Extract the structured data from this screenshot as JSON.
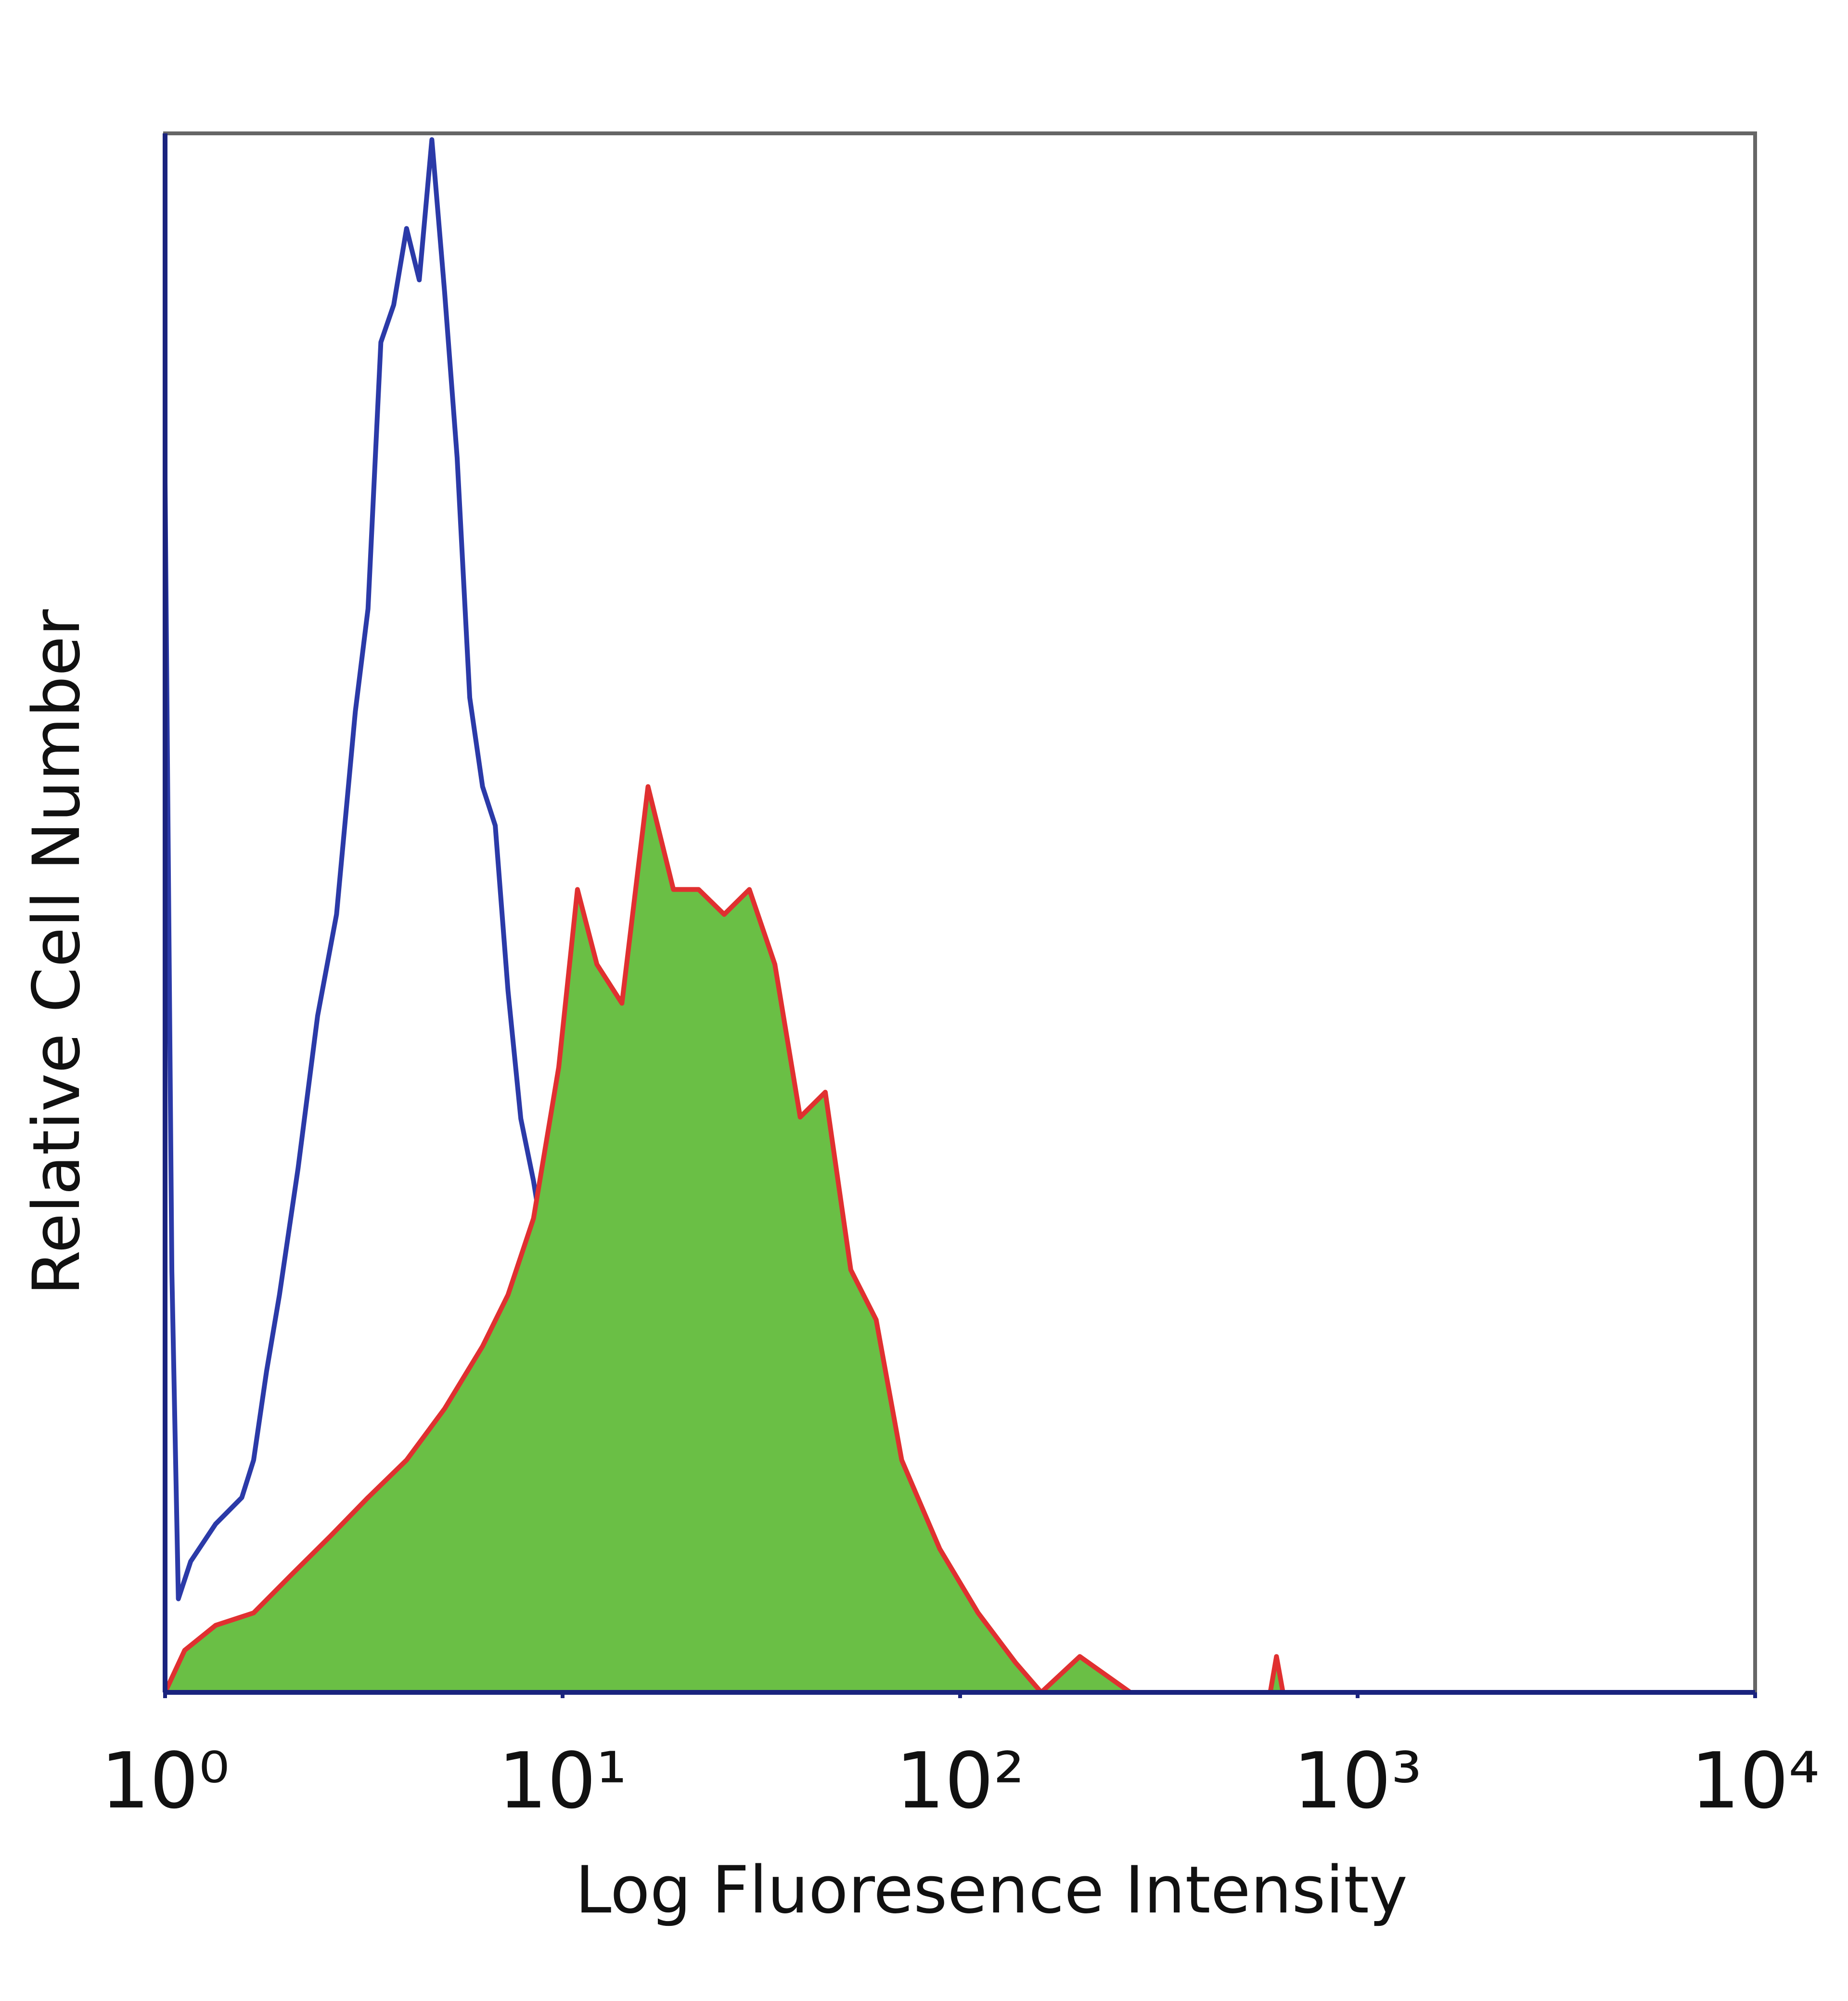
{
  "chart_data": {
    "type": "histogram-overlay",
    "xlabel": "Log Fluoresence Intensity",
    "ylabel": "Relative Cell Number",
    "xscale": "log",
    "xlim": [
      1,
      10000
    ],
    "ylim": [
      0,
      100
    ],
    "xticks": [
      {
        "value": 1,
        "label": "10⁰"
      },
      {
        "value": 10,
        "label": "10¹"
      },
      {
        "value": 100,
        "label": "10²"
      },
      {
        "value": 1000,
        "label": "10³"
      },
      {
        "value": 10000,
        "label": "10⁴"
      }
    ],
    "series": [
      {
        "color": "#2b3aa8",
        "filled": false,
        "x": [
          1,
          1.04,
          1.08,
          1.16,
          1.34,
          1.56,
          1.67,
          1.8,
          1.94,
          2.16,
          2.42,
          2.7,
          3.01,
          3.24,
          3.49,
          3.76,
          4.05,
          4.36,
          4.69,
          5.05,
          5.43,
          5.84,
          6.29,
          6.77,
          7.29,
          7.85,
          8.45,
          9.08,
          9.78,
          10.5,
          11.3,
          12.6,
          14.1,
          16.4,
          19,
          23.6,
          29.5,
          31.8
        ],
        "values": [
          77.6,
          27,
          6,
          8.4,
          10.8,
          12.5,
          14.9,
          20.6,
          25.5,
          33.6,
          43.4,
          49.9,
          62.9,
          69.5,
          86.6,
          89,
          93.9,
          90.6,
          99.6,
          89.8,
          79.2,
          63.8,
          58.1,
          55.6,
          45,
          36.8,
          32.8,
          27.9,
          23,
          16.5,
          12.5,
          9.2,
          5.9,
          3.5,
          1.9,
          2.7,
          2.3,
          0
        ]
      },
      {
        "color": "#6abf45",
        "edge_color": "#e03030",
        "filled": true,
        "x": [
          1,
          1.12,
          1.34,
          1.67,
          2.09,
          2.6,
          3.24,
          4.05,
          5.05,
          6.29,
          7.29,
          8.45,
          9.78,
          10.9,
          12.2,
          14.1,
          16.4,
          19,
          22,
          25.5,
          29.5,
          34.2,
          39.6,
          45.8,
          53.1,
          61.5,
          71.3,
          88.9,
          111,
          138,
          160,
          200,
          268,
          603,
          625,
          649
        ],
        "values": [
          0,
          2.7,
          4.3,
          5.1,
          7.6,
          10,
          12.5,
          14.9,
          18.2,
          22.2,
          25.5,
          30.4,
          40.1,
          51.5,
          46.7,
          44.2,
          58.1,
          51.5,
          51.5,
          49.9,
          51.5,
          46.7,
          36.9,
          38.5,
          27.1,
          23.9,
          14.9,
          9.2,
          5.1,
          1.9,
          0,
          2.3,
          0,
          0,
          2.3,
          0
        ]
      }
    ]
  }
}
